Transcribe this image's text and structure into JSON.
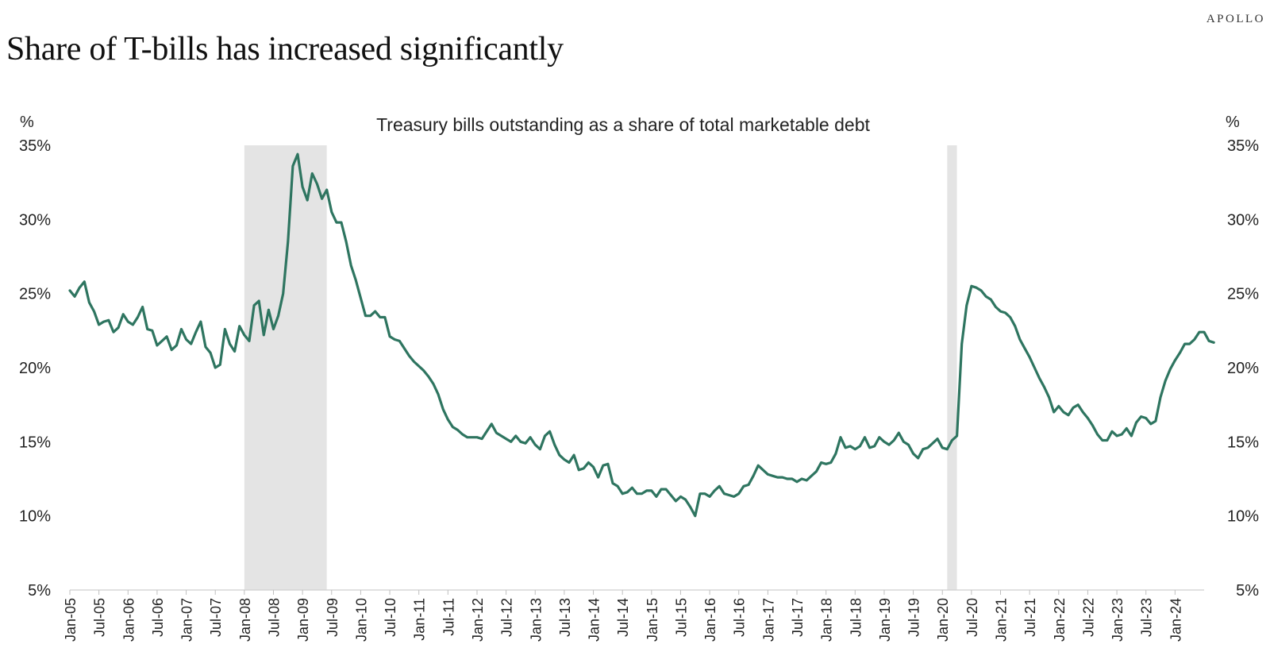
{
  "brand": "APOLLO",
  "headline": "Share of T-bills has increased significantly",
  "chart_data": {
    "type": "line",
    "title": "Treasury bills outstanding as a share of total marketable debt",
    "y_unit_left": "%",
    "y_unit_right": "%",
    "ylim": [
      5,
      35
    ],
    "yticks": [
      5,
      10,
      15,
      20,
      25,
      30,
      35
    ],
    "ytick_labels": [
      "5%",
      "10%",
      "15%",
      "20%",
      "25%",
      "30%",
      "35%"
    ],
    "xlim": [
      "2005-01",
      "2024-07"
    ],
    "xticks": [
      "2005-01",
      "2005-07",
      "2006-01",
      "2006-07",
      "2007-01",
      "2007-07",
      "2008-01",
      "2008-07",
      "2009-01",
      "2009-07",
      "2010-01",
      "2010-07",
      "2011-01",
      "2011-07",
      "2012-01",
      "2012-07",
      "2013-01",
      "2013-07",
      "2014-01",
      "2014-07",
      "2015-01",
      "2015-07",
      "2016-01",
      "2016-07",
      "2017-01",
      "2017-07",
      "2018-01",
      "2018-07",
      "2019-01",
      "2019-07",
      "2020-01",
      "2020-07",
      "2021-01",
      "2021-07",
      "2022-01",
      "2022-07",
      "2023-01",
      "2023-07",
      "2024-01"
    ],
    "xtick_labels": [
      "Jan-05",
      "Jul-05",
      "Jan-06",
      "Jul-06",
      "Jan-07",
      "Jul-07",
      "Jan-08",
      "Jul-08",
      "Jan-09",
      "Jul-09",
      "Jan-10",
      "Jul-10",
      "Jan-11",
      "Jul-11",
      "Jan-12",
      "Jul-12",
      "Jan-13",
      "Jul-13",
      "Jan-14",
      "Jul-14",
      "Jan-15",
      "Jul-15",
      "Jan-16",
      "Jul-16",
      "Jan-17",
      "Jul-17",
      "Jan-18",
      "Jul-18",
      "Jan-19",
      "Jul-19",
      "Jan-20",
      "Jul-20",
      "Jan-21",
      "Jul-21",
      "Jan-22",
      "Jul-22",
      "Jan-23",
      "Jul-23",
      "Jan-24"
    ],
    "grid": false,
    "legend": "none",
    "line_color": "#2e7560",
    "shade_color": "#e4e4e4",
    "recessions": [
      {
        "start": "2008-01",
        "end": "2009-06"
      },
      {
        "start": "2020-02",
        "end": "2020-04"
      }
    ],
    "series": [
      {
        "values": [
          [
            "2005-01",
            25.2
          ],
          [
            "2005-02",
            24.8
          ],
          [
            "2005-03",
            25.4
          ],
          [
            "2005-04",
            25.8
          ],
          [
            "2005-05",
            24.4
          ],
          [
            "2005-06",
            23.8
          ],
          [
            "2005-07",
            22.9
          ],
          [
            "2005-08",
            23.1
          ],
          [
            "2005-09",
            23.2
          ],
          [
            "2005-10",
            22.4
          ],
          [
            "2005-11",
            22.7
          ],
          [
            "2005-12",
            23.6
          ],
          [
            "2006-01",
            23.1
          ],
          [
            "2006-02",
            22.9
          ],
          [
            "2006-03",
            23.4
          ],
          [
            "2006-04",
            24.1
          ],
          [
            "2006-05",
            22.6
          ],
          [
            "2006-06",
            22.5
          ],
          [
            "2006-07",
            21.5
          ],
          [
            "2006-08",
            21.8
          ],
          [
            "2006-09",
            22.1
          ],
          [
            "2006-10",
            21.2
          ],
          [
            "2006-11",
            21.5
          ],
          [
            "2006-12",
            22.6
          ],
          [
            "2007-01",
            21.9
          ],
          [
            "2007-02",
            21.6
          ],
          [
            "2007-03",
            22.4
          ],
          [
            "2007-04",
            23.1
          ],
          [
            "2007-05",
            21.4
          ],
          [
            "2007-06",
            21.0
          ],
          [
            "2007-07",
            20.0
          ],
          [
            "2007-08",
            20.2
          ],
          [
            "2007-09",
            22.6
          ],
          [
            "2007-10",
            21.6
          ],
          [
            "2007-11",
            21.1
          ],
          [
            "2007-12",
            22.8
          ],
          [
            "2008-01",
            22.2
          ],
          [
            "2008-02",
            21.8
          ],
          [
            "2008-03",
            24.2
          ],
          [
            "2008-04",
            24.5
          ],
          [
            "2008-05",
            22.2
          ],
          [
            "2008-06",
            23.9
          ],
          [
            "2008-07",
            22.6
          ],
          [
            "2008-08",
            23.5
          ],
          [
            "2008-09",
            25.0
          ],
          [
            "2008-10",
            28.5
          ],
          [
            "2008-11",
            33.6
          ],
          [
            "2008-12",
            34.4
          ],
          [
            "2009-01",
            32.2
          ],
          [
            "2009-02",
            31.3
          ],
          [
            "2009-03",
            33.1
          ],
          [
            "2009-04",
            32.4
          ],
          [
            "2009-05",
            31.4
          ],
          [
            "2009-06",
            32.0
          ],
          [
            "2009-07",
            30.5
          ],
          [
            "2009-08",
            29.8
          ],
          [
            "2009-09",
            29.8
          ],
          [
            "2009-10",
            28.5
          ],
          [
            "2009-11",
            26.9
          ],
          [
            "2009-12",
            25.9
          ],
          [
            "2010-01",
            24.7
          ],
          [
            "2010-02",
            23.5
          ],
          [
            "2010-03",
            23.5
          ],
          [
            "2010-04",
            23.8
          ],
          [
            "2010-05",
            23.4
          ],
          [
            "2010-06",
            23.4
          ],
          [
            "2010-07",
            22.1
          ],
          [
            "2010-08",
            21.9
          ],
          [
            "2010-09",
            21.8
          ],
          [
            "2010-10",
            21.3
          ],
          [
            "2010-11",
            20.8
          ],
          [
            "2010-12",
            20.4
          ],
          [
            "2011-01",
            20.1
          ],
          [
            "2011-02",
            19.8
          ],
          [
            "2011-03",
            19.4
          ],
          [
            "2011-04",
            18.9
          ],
          [
            "2011-05",
            18.2
          ],
          [
            "2011-06",
            17.2
          ],
          [
            "2011-07",
            16.5
          ],
          [
            "2011-08",
            16.0
          ],
          [
            "2011-09",
            15.8
          ],
          [
            "2011-10",
            15.5
          ],
          [
            "2011-11",
            15.3
          ],
          [
            "2011-12",
            15.3
          ],
          [
            "2012-01",
            15.3
          ],
          [
            "2012-02",
            15.2
          ],
          [
            "2012-03",
            15.7
          ],
          [
            "2012-04",
            16.2
          ],
          [
            "2012-05",
            15.6
          ],
          [
            "2012-06",
            15.4
          ],
          [
            "2012-07",
            15.2
          ],
          [
            "2012-08",
            15.0
          ],
          [
            "2012-09",
            15.4
          ],
          [
            "2012-10",
            15.0
          ],
          [
            "2012-11",
            14.9
          ],
          [
            "2012-12",
            15.3
          ],
          [
            "2013-01",
            14.8
          ],
          [
            "2013-02",
            14.5
          ],
          [
            "2013-03",
            15.4
          ],
          [
            "2013-04",
            15.7
          ],
          [
            "2013-05",
            14.8
          ],
          [
            "2013-06",
            14.1
          ],
          [
            "2013-07",
            13.8
          ],
          [
            "2013-08",
            13.6
          ],
          [
            "2013-09",
            14.1
          ],
          [
            "2013-10",
            13.1
          ],
          [
            "2013-11",
            13.2
          ],
          [
            "2013-12",
            13.6
          ],
          [
            "2014-01",
            13.3
          ],
          [
            "2014-02",
            12.6
          ],
          [
            "2014-03",
            13.4
          ],
          [
            "2014-04",
            13.5
          ],
          [
            "2014-05",
            12.2
          ],
          [
            "2014-06",
            12.0
          ],
          [
            "2014-07",
            11.5
          ],
          [
            "2014-08",
            11.6
          ],
          [
            "2014-09",
            11.9
          ],
          [
            "2014-10",
            11.5
          ],
          [
            "2014-11",
            11.5
          ],
          [
            "2014-12",
            11.7
          ],
          [
            "2015-01",
            11.7
          ],
          [
            "2015-02",
            11.3
          ],
          [
            "2015-03",
            11.8
          ],
          [
            "2015-04",
            11.8
          ],
          [
            "2015-05",
            11.4
          ],
          [
            "2015-06",
            11.0
          ],
          [
            "2015-07",
            11.3
          ],
          [
            "2015-08",
            11.1
          ],
          [
            "2015-09",
            10.6
          ],
          [
            "2015-10",
            10.0
          ],
          [
            "2015-11",
            11.5
          ],
          [
            "2015-12",
            11.5
          ],
          [
            "2016-01",
            11.3
          ],
          [
            "2016-02",
            11.7
          ],
          [
            "2016-03",
            12.0
          ],
          [
            "2016-04",
            11.5
          ],
          [
            "2016-05",
            11.4
          ],
          [
            "2016-06",
            11.3
          ],
          [
            "2016-07",
            11.5
          ],
          [
            "2016-08",
            12.0
          ],
          [
            "2016-09",
            12.1
          ],
          [
            "2016-10",
            12.7
          ],
          [
            "2016-11",
            13.4
          ],
          [
            "2016-12",
            13.1
          ],
          [
            "2017-01",
            12.8
          ],
          [
            "2017-02",
            12.7
          ],
          [
            "2017-03",
            12.6
          ],
          [
            "2017-04",
            12.6
          ],
          [
            "2017-05",
            12.5
          ],
          [
            "2017-06",
            12.5
          ],
          [
            "2017-07",
            12.3
          ],
          [
            "2017-08",
            12.5
          ],
          [
            "2017-09",
            12.4
          ],
          [
            "2017-10",
            12.7
          ],
          [
            "2017-11",
            13.0
          ],
          [
            "2017-12",
            13.6
          ],
          [
            "2018-01",
            13.5
          ],
          [
            "2018-02",
            13.6
          ],
          [
            "2018-03",
            14.2
          ],
          [
            "2018-04",
            15.3
          ],
          [
            "2018-05",
            14.6
          ],
          [
            "2018-06",
            14.7
          ],
          [
            "2018-07",
            14.5
          ],
          [
            "2018-08",
            14.7
          ],
          [
            "2018-09",
            15.3
          ],
          [
            "2018-10",
            14.6
          ],
          [
            "2018-11",
            14.7
          ],
          [
            "2018-12",
            15.3
          ],
          [
            "2019-01",
            15.0
          ],
          [
            "2019-02",
            14.8
          ],
          [
            "2019-03",
            15.1
          ],
          [
            "2019-04",
            15.6
          ],
          [
            "2019-05",
            15.0
          ],
          [
            "2019-06",
            14.8
          ],
          [
            "2019-07",
            14.2
          ],
          [
            "2019-08",
            13.9
          ],
          [
            "2019-09",
            14.5
          ],
          [
            "2019-10",
            14.6
          ],
          [
            "2019-11",
            14.9
          ],
          [
            "2019-12",
            15.2
          ],
          [
            "2020-01",
            14.6
          ],
          [
            "2020-02",
            14.5
          ],
          [
            "2020-03",
            15.1
          ],
          [
            "2020-04",
            15.4
          ],
          [
            "2020-05",
            21.6
          ],
          [
            "2020-06",
            24.2
          ],
          [
            "2020-07",
            25.5
          ],
          [
            "2020-08",
            25.4
          ],
          [
            "2020-09",
            25.2
          ],
          [
            "2020-10",
            24.8
          ],
          [
            "2020-11",
            24.6
          ],
          [
            "2020-12",
            24.1
          ],
          [
            "2021-01",
            23.8
          ],
          [
            "2021-02",
            23.7
          ],
          [
            "2021-03",
            23.4
          ],
          [
            "2021-04",
            22.8
          ],
          [
            "2021-05",
            21.9
          ],
          [
            "2021-06",
            21.3
          ],
          [
            "2021-07",
            20.7
          ],
          [
            "2021-08",
            20.0
          ],
          [
            "2021-09",
            19.3
          ],
          [
            "2021-10",
            18.7
          ],
          [
            "2021-11",
            18.0
          ],
          [
            "2021-12",
            17.0
          ],
          [
            "2022-01",
            17.4
          ],
          [
            "2022-02",
            17.0
          ],
          [
            "2022-03",
            16.8
          ],
          [
            "2022-04",
            17.3
          ],
          [
            "2022-05",
            17.5
          ],
          [
            "2022-06",
            17.0
          ],
          [
            "2022-07",
            16.6
          ],
          [
            "2022-08",
            16.1
          ],
          [
            "2022-09",
            15.5
          ],
          [
            "2022-10",
            15.1
          ],
          [
            "2022-11",
            15.1
          ],
          [
            "2022-12",
            15.7
          ],
          [
            "2023-01",
            15.4
          ],
          [
            "2023-02",
            15.5
          ],
          [
            "2023-03",
            15.9
          ],
          [
            "2023-04",
            15.4
          ],
          [
            "2023-05",
            16.3
          ],
          [
            "2023-06",
            16.7
          ],
          [
            "2023-07",
            16.6
          ],
          [
            "2023-08",
            16.2
          ],
          [
            "2023-09",
            16.4
          ],
          [
            "2023-10",
            18.0
          ],
          [
            "2023-11",
            19.1
          ],
          [
            "2023-12",
            19.9
          ],
          [
            "2024-01",
            20.5
          ],
          [
            "2024-02",
            21.0
          ],
          [
            "2024-03",
            21.6
          ],
          [
            "2024-04",
            21.6
          ],
          [
            "2024-05",
            21.9
          ],
          [
            "2024-06",
            22.4
          ],
          [
            "2024-07",
            22.4
          ],
          [
            "2024-08",
            21.8
          ],
          [
            "2024-09",
            21.7
          ]
        ]
      }
    ]
  }
}
